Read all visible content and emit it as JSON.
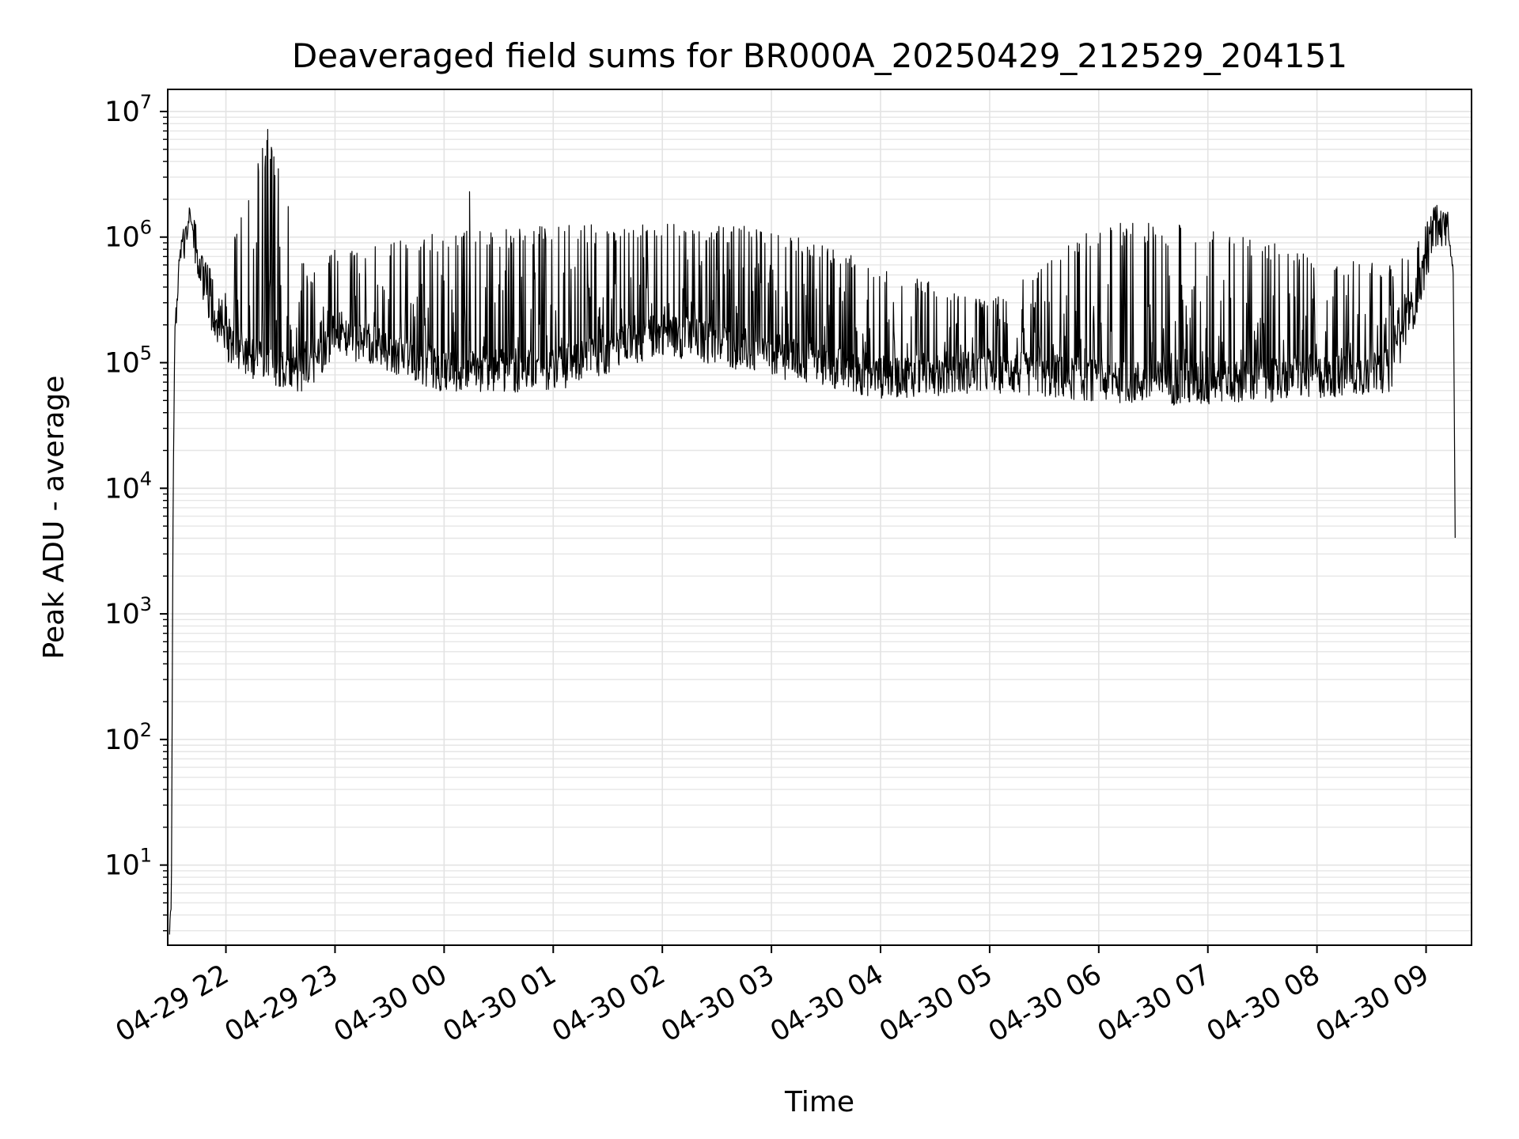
{
  "chart_data": {
    "type": "line",
    "title": "Deaveraged field sums for BR000A_20250429_212529_204151",
    "xlabel": "Time",
    "ylabel": "Peak ADU - average",
    "yscale": "log",
    "ylim": [
      2.3,
      15000000
    ],
    "xlim": [
      "2025-04-29 21:28",
      "2025-04-30 09:25"
    ],
    "grid": true,
    "line_color": "#000000",
    "x_ticks": [
      {
        "t": "2025-04-29 22:00",
        "label": "04-29 22"
      },
      {
        "t": "2025-04-29 23:00",
        "label": "04-29 23"
      },
      {
        "t": "2025-04-30 00:00",
        "label": "04-30 00"
      },
      {
        "t": "2025-04-30 01:00",
        "label": "04-30 01"
      },
      {
        "t": "2025-04-30 02:00",
        "label": "04-30 02"
      },
      {
        "t": "2025-04-30 03:00",
        "label": "04-30 03"
      },
      {
        "t": "2025-04-30 04:00",
        "label": "04-30 04"
      },
      {
        "t": "2025-04-30 05:00",
        "label": "04-30 05"
      },
      {
        "t": "2025-04-30 06:00",
        "label": "04-30 06"
      },
      {
        "t": "2025-04-30 07:00",
        "label": "04-30 07"
      },
      {
        "t": "2025-04-30 08:00",
        "label": "04-30 08"
      },
      {
        "t": "2025-04-30 09:00",
        "label": "04-30 09"
      }
    ],
    "y_ticks": [
      {
        "value": 10,
        "base": "10",
        "exp": "1"
      },
      {
        "value": 100,
        "base": "10",
        "exp": "2"
      },
      {
        "value": 1000,
        "base": "10",
        "exp": "3"
      },
      {
        "value": 10000,
        "base": "10",
        "exp": "4"
      },
      {
        "value": 100000,
        "base": "10",
        "exp": "5"
      },
      {
        "value": 1000000,
        "base": "10",
        "exp": "6"
      },
      {
        "value": 10000000,
        "base": "10",
        "exp": "7"
      }
    ],
    "series": [
      {
        "description": "anchor points of the envelope (time, baseline, spike top)",
        "x": [
          "2025-04-29 21:29",
          "2025-04-29 21:30",
          "2025-04-29 21:31",
          "2025-04-29 21:32",
          "2025-04-29 21:35",
          "2025-04-29 21:40",
          "2025-04-29 21:45",
          "2025-04-29 21:50",
          "2025-04-29 22:00",
          "2025-04-29 22:23",
          "2025-04-29 22:45",
          "2025-04-29 23:00",
          "2025-04-30 00:00",
          "2025-04-30 01:00",
          "2025-04-30 02:00",
          "2025-04-30 03:00",
          "2025-04-30 04:00",
          "2025-04-30 05:00",
          "2025-04-30 06:00",
          "2025-04-30 07:00",
          "2025-04-30 08:00",
          "2025-04-30 08:40",
          "2025-04-30 08:55",
          "2025-04-30 09:05",
          "2025-04-30 09:12",
          "2025-04-30 09:15",
          "2025-04-30 09:16"
        ],
        "baseline": [
          3,
          5,
          10000,
          200000,
          800000,
          1500000,
          700000,
          300000,
          150000,
          100000,
          90000,
          180000,
          90000,
          90000,
          180000,
          120000,
          80000,
          90000,
          75000,
          70000,
          80000,
          90000,
          350000,
          1300000,
          1200000,
          500000,
          4000
        ],
        "peak": [
          130000,
          130000,
          200000,
          300000,
          900000,
          1600000,
          800000,
          600000,
          600000,
          7200000,
          500000,
          800000,
          1100000,
          1250000,
          1300000,
          1200000,
          600000,
          300000,
          1300000,
          1300000,
          700000,
          600000,
          900000,
          1800000,
          1500000,
          600000,
          15000
        ]
      }
    ],
    "annotations": [
      {
        "t": "2025-04-29 22:23",
        "value": 7200000,
        "note": "spike"
      },
      {
        "t": "2025-04-30 00:14",
        "value": 2300000,
        "note": "spike"
      }
    ]
  }
}
